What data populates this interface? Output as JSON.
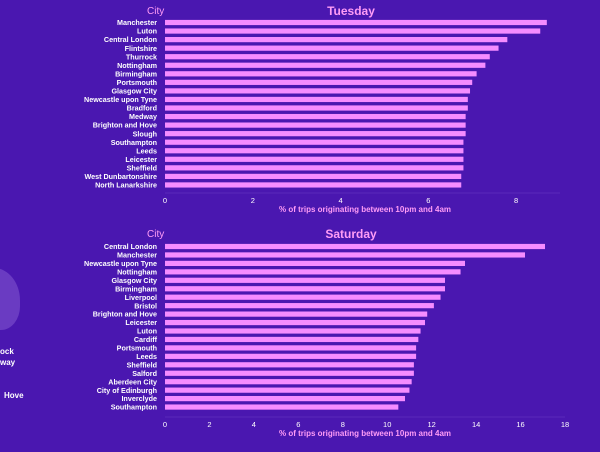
{
  "background_fragments": [
    "ock",
    "way",
    "Hove"
  ],
  "colors": {
    "background": "#4a17b0",
    "bar": "#f58cff",
    "title": "#ff9cf6",
    "label": "#ffffff",
    "axis_label": "#ff9cf6"
  },
  "chart_data": [
    {
      "type": "bar",
      "orientation": "horizontal",
      "title": "Tuesday",
      "category_header": "City",
      "xlabel": "% of trips originating between 10pm and 4am",
      "xlim": [
        0,
        9
      ],
      "xticks": [
        0,
        2,
        4,
        6,
        8
      ],
      "categories": [
        "Manchester",
        "Luton",
        "Central London",
        "Flintshire",
        "Thurrock",
        "Nottingham",
        "Birmingham",
        "Portsmouth",
        "Glasgow City",
        "Newcastle upon Tyne",
        "Bradford",
        "Medway",
        "Brighton and Hove",
        "Slough",
        "Southampton",
        "Leeds",
        "Leicester",
        "Sheffield",
        "West Dunbartonshire",
        "North Lanarkshire"
      ],
      "values": [
        8.7,
        8.55,
        7.8,
        7.6,
        7.4,
        7.3,
        7.1,
        7.0,
        6.95,
        6.9,
        6.9,
        6.85,
        6.85,
        6.85,
        6.8,
        6.8,
        6.8,
        6.8,
        6.75,
        6.75
      ]
    },
    {
      "type": "bar",
      "orientation": "horizontal",
      "title": "Saturday",
      "category_header": "City",
      "xlabel": "% of trips originating between 10pm and 4am",
      "xlim": [
        0,
        18
      ],
      "xticks": [
        0,
        2,
        4,
        6,
        8,
        10,
        12,
        14,
        16,
        18
      ],
      "categories": [
        "Central London",
        "Manchester",
        "Newcastle upon Tyne",
        "Nottingham",
        "Glasgow City",
        "Birmingham",
        "Liverpool",
        "Bristol",
        "Brighton and Hove",
        "Leicester",
        "Luton",
        "Cardiff",
        "Portsmouth",
        "Leeds",
        "Sheffield",
        "Salford",
        "Aberdeen City",
        "City of Edinburgh",
        "Inverclyde",
        "Southampton"
      ],
      "values": [
        17.1,
        16.2,
        13.5,
        13.3,
        12.6,
        12.6,
        12.4,
        12.1,
        11.8,
        11.7,
        11.5,
        11.4,
        11.3,
        11.3,
        11.2,
        11.2,
        11.1,
        11.0,
        10.8,
        10.5
      ]
    }
  ]
}
